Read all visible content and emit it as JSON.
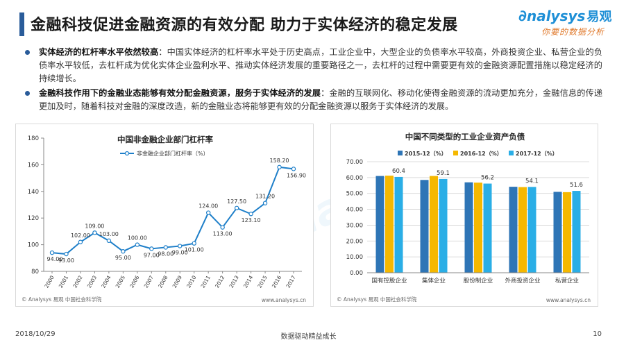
{
  "header": {
    "title": "金融科技促进金融资源的有效分配 助力于实体经济的稳定发展"
  },
  "logo": {
    "brand": "nalysys",
    "brand_cn": "易观",
    "slogan": "你要的数据分析"
  },
  "bullets": [
    {
      "lead": "实体经济的杠杆率水平依然较高",
      "sep": "：",
      "text": "中国实体经济的杠杆率水平处于历史高点，工业企业中，大型企业的负债率水平较高，外商投资企业、私营企业的负债率水平较低，去杠杆成为优化实体企业盈利水平、推动实体经济发展的重要路径之一，去杠杆的过程中需要更有效的金融资源配置措施以稳定经济的持续增长。"
    },
    {
      "lead": "金融科技作用下的金融业态能够有效分配金融资源，服务于实体经济的发展",
      "sep": "：",
      "text": "金融的互联网化、移动化使得金融资源的流动更加充分，金融信息的传递更加及时，随着科技对金融的深度改造，新的金融业态将能够更有效的分配金融资源以服务于实体经济的发展。"
    }
  ],
  "left_credit": "© Analysys 易观 中国社会科学院",
  "left_site": "www.analysys.cn",
  "right_credit": "© Analysys 易观 中国社会科学院",
  "right_site": "www.analysys.cn",
  "footer": {
    "date": "2018/10/29",
    "center": "数据驱动精益成长",
    "page": "10"
  },
  "watermark": "Analysys",
  "colors": {
    "accent": "#2a5c9a",
    "line": "#1e7fc9",
    "s2015": "#2e75b6",
    "s2016": "#f5b800",
    "s2017": "#2aaee6"
  },
  "chart_data": [
    {
      "type": "line",
      "title": "中国非金融企业部门杠杆率",
      "x": [
        "2000",
        "2001",
        "2002",
        "2003",
        "2004",
        "2005",
        "2006",
        "2007",
        "2008",
        "2009",
        "2010",
        "2011",
        "2012",
        "2013",
        "2014",
        "2015",
        "2016",
        "2017"
      ],
      "series": [
        {
          "name": "非金融企业部门杠杆率（%）",
          "values": [
            94.0,
            93.0,
            102.0,
            109.0,
            103.0,
            95.0,
            100.0,
            97.0,
            98.0,
            99.0,
            101.0,
            124.0,
            113.0,
            127.5,
            123.1,
            131.2,
            158.2,
            156.9
          ],
          "labels": [
            "94.00",
            "93.00",
            "102.00",
            "109.00",
            "103.00",
            "95.00",
            "100.00",
            "97.00",
            "98.00",
            "99.00",
            "101.00",
            "124.00",
            "113.00",
            "127.50",
            "123.10",
            "131.20",
            "158.20",
            "156.90"
          ]
        }
      ],
      "ylim": [
        80,
        180
      ],
      "yticks": [
        "80",
        "100",
        "120",
        "140",
        "160",
        "180"
      ],
      "grid": false,
      "legend": "top-center"
    },
    {
      "type": "bar",
      "title": "中国不同类型的工业企业资产负债",
      "categories": [
        "国有控股企业",
        "集体企业",
        "股份制企业",
        "外商投资企业",
        "私营企业"
      ],
      "series": [
        {
          "name": "2015-12（%）",
          "values": [
            61.0,
            58.5,
            57.0,
            54.2,
            51.0
          ]
        },
        {
          "name": "2016-12（%）",
          "values": [
            61.2,
            61.0,
            56.8,
            54.0,
            50.8
          ]
        },
        {
          "name": "2017-12（%）",
          "values": [
            60.4,
            59.1,
            56.2,
            54.1,
            51.6
          ]
        }
      ],
      "value_labels": [
        "60.4",
        "59.1",
        "56.2",
        "54.1",
        "51.6"
      ],
      "ylim": [
        0,
        70
      ],
      "yticks": [
        "0.00",
        "10.00",
        "20.00",
        "30.00",
        "40.00",
        "50.00",
        "60.00",
        "70.00"
      ],
      "grid": true,
      "legend": "top-center"
    }
  ]
}
